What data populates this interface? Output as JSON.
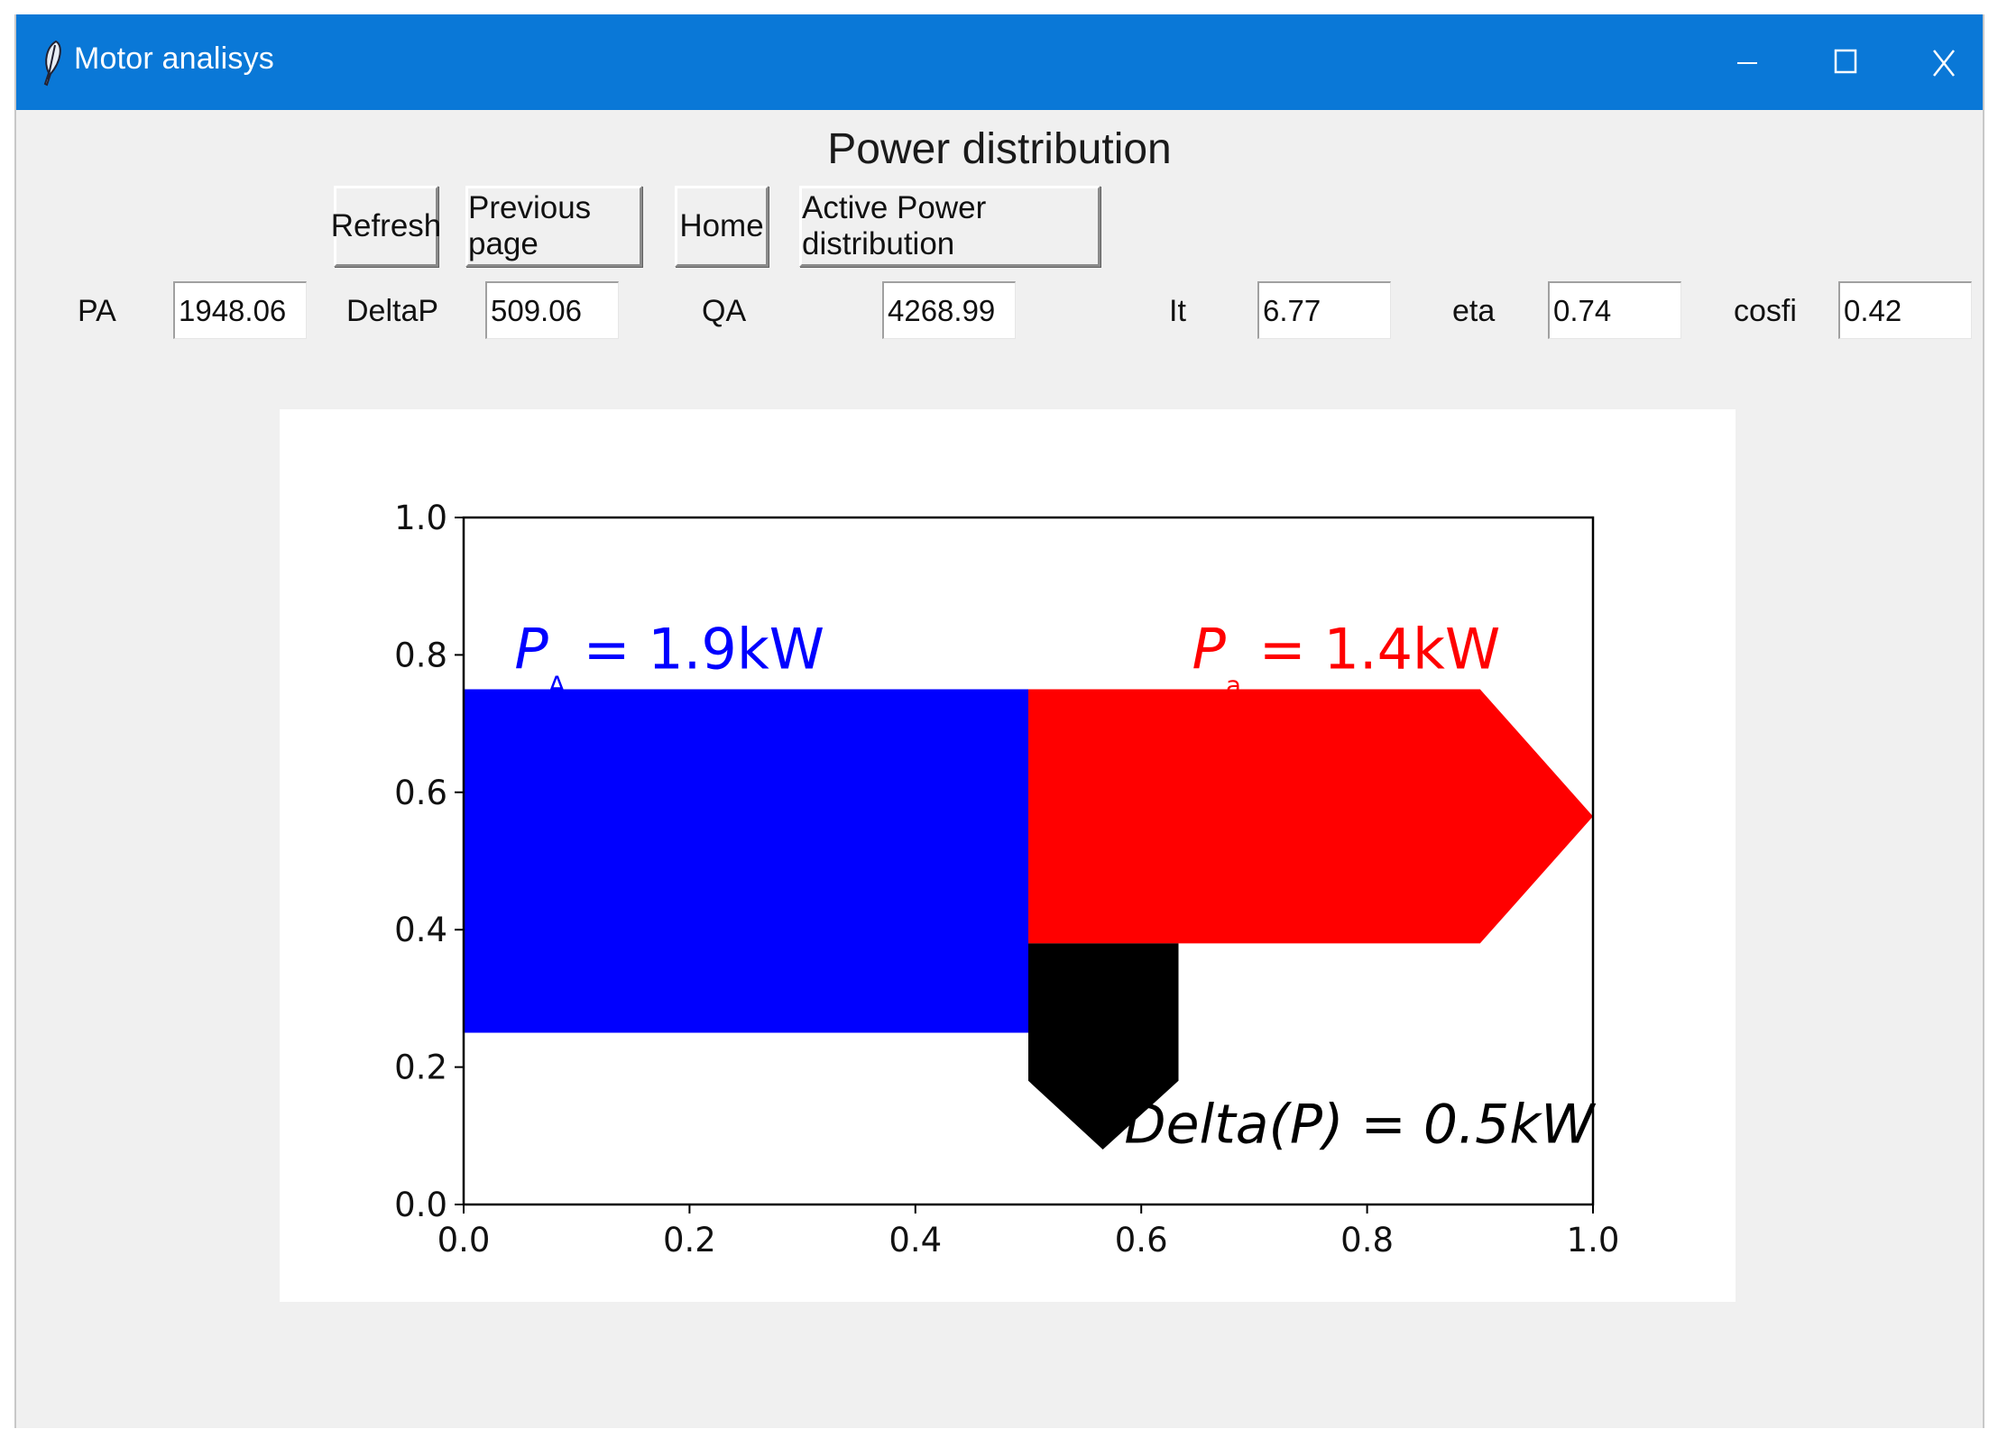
{
  "window": {
    "title": "Motor analisys"
  },
  "titlebar": {
    "minimize_label": "–",
    "close_label": "X"
  },
  "page": {
    "title": "Power distribution"
  },
  "toolbar": {
    "refresh_label": "Refresh",
    "previous_label": "Previous page",
    "home_label": "Home",
    "active_power_label": "Active Power distribution"
  },
  "fields": {
    "pa": {
      "label": "PA",
      "value": "1948.06"
    },
    "deltap": {
      "label": "DeltaP",
      "value": "509.06"
    },
    "qa": {
      "label": "QA",
      "value": "4268.99"
    },
    "it": {
      "label": "It",
      "value": "6.77"
    },
    "eta": {
      "label": "eta",
      "value": "0.74"
    },
    "cosfi": {
      "label": "cosfi",
      "value": "0.42"
    }
  },
  "colors": {
    "titlebar": "#0a78d7",
    "input_power": "#0000ff",
    "output_power": "#ff0000",
    "loss": "#000000"
  },
  "chart_data": {
    "type": "sankey",
    "xlim": [
      0,
      1
    ],
    "ylim": [
      0,
      1
    ],
    "xticks": [
      "0.0",
      "0.2",
      "0.4",
      "0.6",
      "0.8",
      "1.0"
    ],
    "yticks": [
      "0.0",
      "0.2",
      "0.4",
      "0.6",
      "0.8",
      "1.0"
    ],
    "flows": [
      {
        "name": "P_A",
        "label_main": "P",
        "label_sub": "A",
        "label_value": " = 1.9kW",
        "value_kw": 1.9,
        "color": "#0000ff"
      },
      {
        "name": "P_a",
        "label_main": "P",
        "label_sub": "a",
        "label_value": " = 1.4kW",
        "value_kw": 1.4,
        "color": "#ff0000"
      },
      {
        "name": "Delta(P)",
        "label_main": "Delta(P) = 0.5kW",
        "value_kw": 0.5,
        "color": "#000000"
      }
    ],
    "shapes": {
      "input_rect": [
        [
          0,
          0.25
        ],
        [
          0.5,
          0.25
        ],
        [
          0.5,
          0.75
        ],
        [
          0,
          0.75
        ]
      ],
      "output_arrow": [
        [
          0.5,
          0.38
        ],
        [
          0.9,
          0.38
        ],
        [
          1.0,
          0.565
        ],
        [
          0.9,
          0.75
        ],
        [
          0.5,
          0.75
        ]
      ],
      "loss_arrow": [
        [
          0.5,
          0.38
        ],
        [
          0.633,
          0.38
        ],
        [
          0.633,
          0.18
        ],
        [
          0.566,
          0.08
        ],
        [
          0.5,
          0.18
        ]
      ]
    },
    "labels_pos": {
      "P_A": [
        0.045,
        0.78
      ],
      "P_a": [
        0.645,
        0.78
      ],
      "Delta(P)": [
        0.585,
        0.09
      ]
    }
  }
}
